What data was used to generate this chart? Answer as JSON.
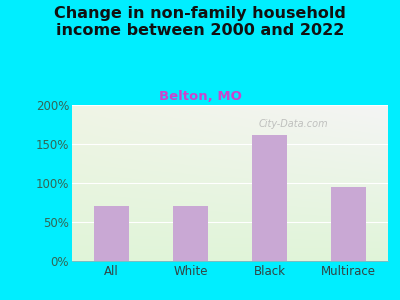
{
  "title": "Change in non-family household\nincome between 2000 and 2022",
  "subtitle": "Belton, MO",
  "categories": [
    "All",
    "White",
    "Black",
    "Multirace"
  ],
  "values": [
    70,
    70,
    162,
    95
  ],
  "bar_color": "#c9a8d4",
  "title_fontsize": 11.5,
  "subtitle_fontsize": 9.5,
  "subtitle_color": "#cc44cc",
  "title_color": "#111111",
  "bg_outer_color": "#00eeff",
  "bg_plot_color_topleft": "#ddeedd",
  "bg_plot_color_topright": "#f0f0f0",
  "bg_plot_color_bottom": "#ddeedd",
  "ytick_color": "#336655",
  "xtick_color": "#334444",
  "ylim": [
    0,
    200
  ],
  "yticks": [
    0,
    50,
    100,
    150,
    200
  ],
  "ytick_labels": [
    "0%",
    "50%",
    "100%",
    "150%",
    "200%"
  ],
  "watermark": "City-Data.com"
}
